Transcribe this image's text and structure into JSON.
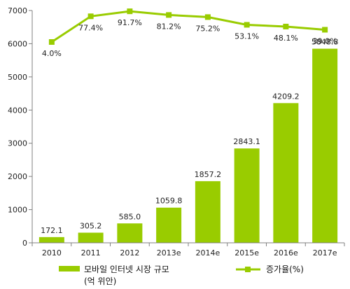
{
  "chart_data": {
    "type": "bar",
    "categories": [
      "2010",
      "2011",
      "2012",
      "2013e",
      "2014e",
      "2015e",
      "2016e",
      "2017e"
    ],
    "series": [
      {
        "name": "모바일 인터넷 시장 규모 (억 위안)",
        "type": "bar",
        "values": [
          172.1,
          305.2,
          585.0,
          1059.8,
          1857.2,
          2843.1,
          4209.2,
          5848.8
        ],
        "value_labels": [
          "172.1",
          "305.2",
          "585.0",
          "1059.8",
          "1857.2",
          "2843.1",
          "4209.2",
          "5848.8"
        ]
      },
      {
        "name": "증가율(%)",
        "type": "line",
        "values": [
          4.0,
          77.4,
          91.7,
          81.2,
          75.2,
          53.1,
          48.1,
          39.0
        ],
        "value_labels": [
          "4.0%",
          "77.4%",
          "91.7%",
          "81.2%",
          "75.2%",
          "53.1%",
          "48.1%",
          "39.0%"
        ]
      }
    ],
    "ylim": [
      0,
      7000
    ],
    "yticks": [
      "0",
      "1000",
      "2000",
      "3000",
      "4000",
      "5000",
      "6000",
      "7000"
    ],
    "grid": false,
    "legend_position": "bottom",
    "legend": {
      "bar_label_line1": "모바일 인터넷 시장 규모",
      "bar_label_line2": "(억 위안)",
      "line_label": "증가율(%)"
    },
    "colors": {
      "bar": "#99cc00",
      "line": "#99cc00",
      "axis": "#808080"
    }
  }
}
